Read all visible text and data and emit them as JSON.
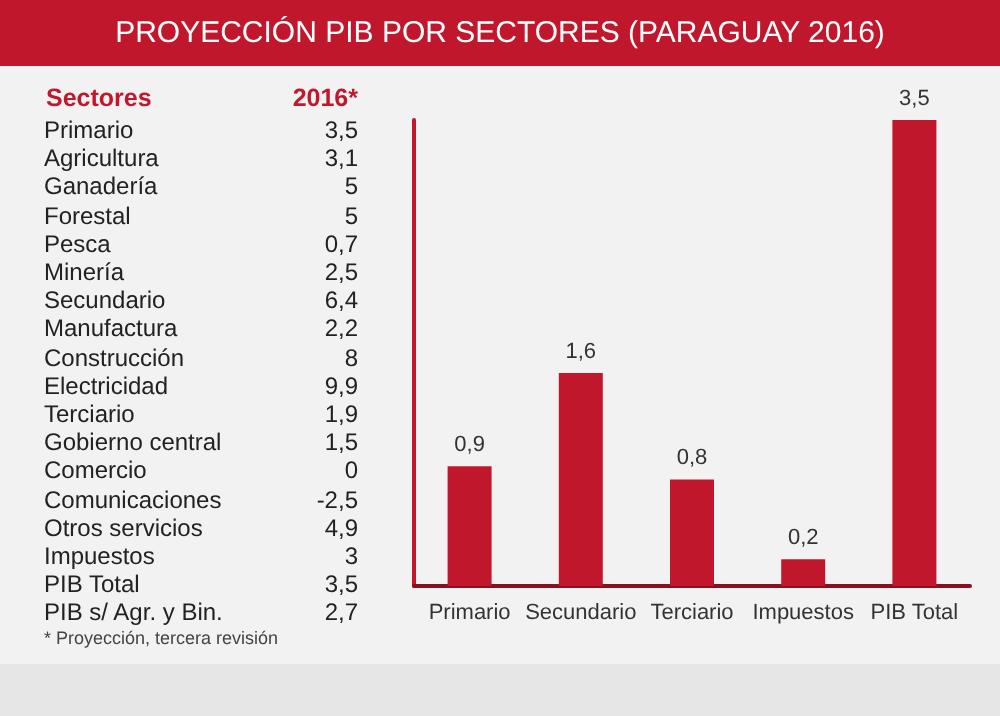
{
  "chart_data": [
    {
      "type": "other",
      "title": "PROYECCIÓN PIB POR SECTORES (PARAGUAY 2016)",
      "xlabel": "Sectores",
      "ylabel": "2016*",
      "categories": [
        "Primario",
        "Agricultura",
        "Ganadería",
        "Forestal",
        "Pesca",
        "Minería",
        "Secundario",
        "Manufactura",
        "Construcción",
        "Electricidad",
        "Terciario",
        "Gobierno central",
        "Comercio",
        "Comunicaciones",
        "Otros servicios",
        "Impuestos",
        "PIB Total",
        "PIB s/ Agr. y Bin."
      ],
      "values": [
        3.5,
        3.1,
        5,
        5,
        0.7,
        2.5,
        6.4,
        2.2,
        8,
        9.9,
        1.9,
        1.5,
        0,
        -2.5,
        4.9,
        3,
        3.5,
        2.7
      ],
      "value_labels": [
        "3,5",
        "3,1",
        "5",
        "5",
        "0,7",
        "2,5",
        "6,4",
        "2,2",
        "8",
        "9,9",
        "1,9",
        "1,5",
        "0",
        "-2,5",
        "4,9",
        "3",
        "3,5",
        "2,7"
      ],
      "annotations": [
        "* Proyección, tercera revisión"
      ]
    },
    {
      "type": "bar",
      "categories": [
        "Primario",
        "Secundario",
        "Terciario",
        "Impuestos",
        "PIB Total"
      ],
      "values": [
        0.9,
        1.6,
        0.8,
        0.2,
        3.5
      ],
      "value_labels": [
        "0,9",
        "1,6",
        "0,8",
        "0,2",
        "3,5"
      ],
      "color": "#c0172d",
      "grid": false
    }
  ]
}
